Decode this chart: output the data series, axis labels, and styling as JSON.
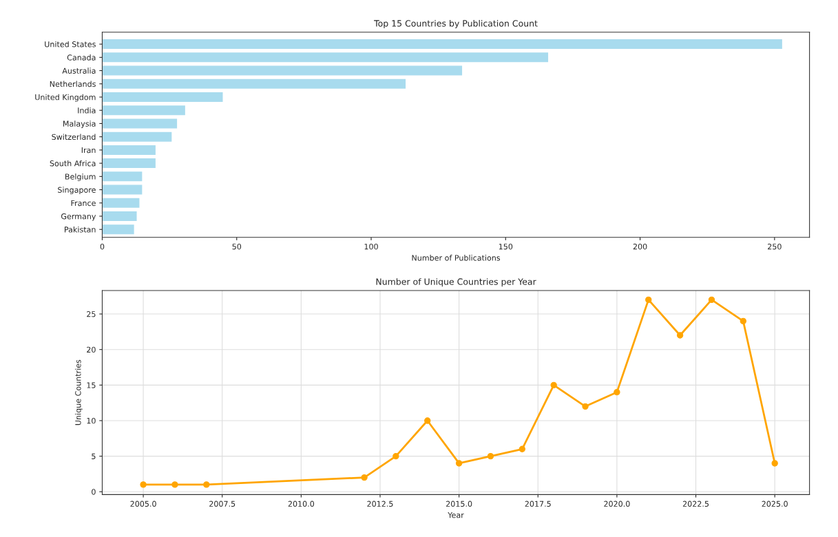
{
  "chart_data": [
    {
      "type": "bar",
      "orientation": "horizontal",
      "title": "Top 15 Countries by Publication Count",
      "xlabel": "Number of Publications",
      "categories": [
        "United States",
        "Canada",
        "Australia",
        "Netherlands",
        "United Kingdom",
        "India",
        "Malaysia",
        "Switzerland",
        "Iran",
        "South Africa",
        "Belgium",
        "Singapore",
        "France",
        "Germany",
        "Pakistan"
      ],
      "values": [
        253,
        166,
        134,
        113,
        45,
        31,
        28,
        26,
        20,
        20,
        15,
        15,
        14,
        13,
        12
      ],
      "color": "#a8dbee",
      "xlim": [
        0,
        263
      ],
      "xticks": [
        0,
        50,
        100,
        150,
        200,
        250
      ],
      "grid": false
    },
    {
      "type": "line",
      "title": "Number of Unique Countries per Year",
      "xlabel": "Year",
      "ylabel": "Unique Countries",
      "x": [
        2005,
        2006,
        2007,
        2012,
        2013,
        2014,
        2015,
        2016,
        2017,
        2018,
        2019,
        2020,
        2021,
        2022,
        2023,
        2024,
        2025
      ],
      "values": [
        1,
        1,
        1,
        2,
        5,
        10,
        4,
        5,
        6,
        15,
        12,
        14,
        27,
        22,
        27,
        24,
        4
      ],
      "color": "#ffa500",
      "marker": "circle",
      "line_style": "solid",
      "xlim": [
        2003.7,
        2026.1
      ],
      "xticks": [
        {
          "value": 2005,
          "label": "2005.0"
        },
        {
          "value": 2007.5,
          "label": "2007.5"
        },
        {
          "value": 2010,
          "label": "2010.0"
        },
        {
          "value": 2012.5,
          "label": "2012.5"
        },
        {
          "value": 2015,
          "label": "2015.0"
        },
        {
          "value": 2017.5,
          "label": "2017.5"
        },
        {
          "value": 2020,
          "label": "2020.0"
        },
        {
          "value": 2022.5,
          "label": "2022.5"
        },
        {
          "value": 2025,
          "label": "2025.0"
        }
      ],
      "ylim": [
        -0.4,
        28.3
      ],
      "yticks": [
        0,
        5,
        10,
        15,
        20,
        25
      ],
      "grid": true
    }
  ]
}
